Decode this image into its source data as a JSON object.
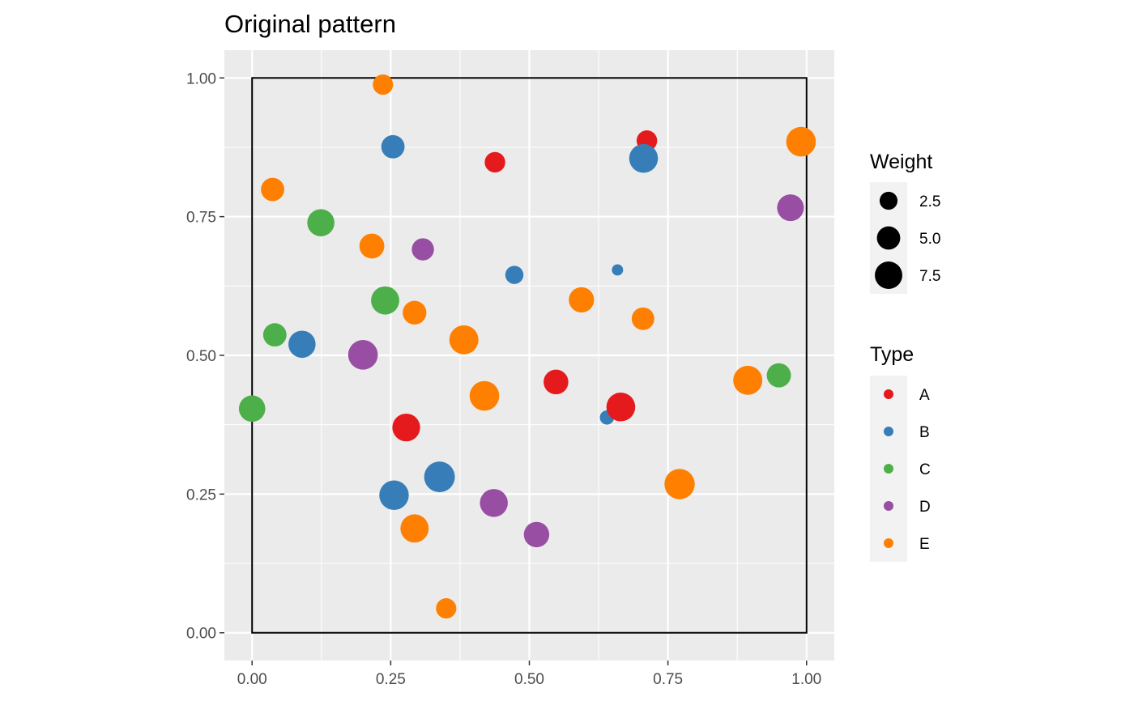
{
  "chart_data": {
    "type": "scatter",
    "title": "Original pattern",
    "xlabel": "",
    "ylabel": "",
    "xlim": [
      -0.05,
      1.05
    ],
    "ylim": [
      -0.05,
      1.05
    ],
    "x_ticks": [
      "0.00",
      "0.25",
      "0.50",
      "0.75",
      "1.00"
    ],
    "y_ticks": [
      "0.00",
      "0.25",
      "0.50",
      "0.75",
      "1.00"
    ],
    "x_tick_values": [
      0,
      0.25,
      0.5,
      0.75,
      1
    ],
    "y_tick_values": [
      0,
      0.25,
      0.5,
      0.75,
      1
    ],
    "grid": true,
    "window": {
      "xmin": 0,
      "xmax": 1,
      "ymin": 0,
      "ymax": 1
    },
    "legend_position": "right",
    "size_legend": {
      "title": "Weight",
      "entries": [
        {
          "label": "2.5",
          "value": 2.5
        },
        {
          "label": "5.0",
          "value": 5.0
        },
        {
          "label": "7.5",
          "value": 7.5
        }
      ]
    },
    "color_legend": {
      "title": "Type",
      "entries": [
        {
          "label": "A",
          "color": "#E41A1C"
        },
        {
          "label": "B",
          "color": "#377EB8"
        },
        {
          "label": "C",
          "color": "#4DAF4A"
        },
        {
          "label": "D",
          "color": "#984EA3"
        },
        {
          "label": "E",
          "color": "#FF7F00"
        }
      ]
    },
    "points": [
      {
        "x": 0.236,
        "y": 0.988,
        "type": "E",
        "weight": 3.5
      },
      {
        "x": 0.254,
        "y": 0.876,
        "type": "B",
        "weight": 5.0
      },
      {
        "x": 0.438,
        "y": 0.848,
        "type": "A",
        "weight": 3.6
      },
      {
        "x": 0.712,
        "y": 0.887,
        "type": "A",
        "weight": 3.6
      },
      {
        "x": 0.706,
        "y": 0.855,
        "type": "B",
        "weight": 8.4
      },
      {
        "x": 0.99,
        "y": 0.885,
        "type": "E",
        "weight": 9.0
      },
      {
        "x": 0.037,
        "y": 0.799,
        "type": "E",
        "weight": 5.0
      },
      {
        "x": 0.124,
        "y": 0.739,
        "type": "C",
        "weight": 7.3
      },
      {
        "x": 0.216,
        "y": 0.697,
        "type": "E",
        "weight": 5.9
      },
      {
        "x": 0.308,
        "y": 0.691,
        "type": "D",
        "weight": 4.4
      },
      {
        "x": 0.971,
        "y": 0.766,
        "type": "D",
        "weight": 7.0
      },
      {
        "x": 0.473,
        "y": 0.645,
        "type": "B",
        "weight": 2.6
      },
      {
        "x": 0.659,
        "y": 0.654,
        "type": "B",
        "weight": 0.6
      },
      {
        "x": 0.24,
        "y": 0.599,
        "type": "C",
        "weight": 8.0
      },
      {
        "x": 0.293,
        "y": 0.577,
        "type": "E",
        "weight": 5.2
      },
      {
        "x": 0.594,
        "y": 0.6,
        "type": "E",
        "weight": 6.1
      },
      {
        "x": 0.705,
        "y": 0.566,
        "type": "E",
        "weight": 4.6
      },
      {
        "x": 0.041,
        "y": 0.537,
        "type": "C",
        "weight": 5.0
      },
      {
        "x": 0.09,
        "y": 0.52,
        "type": "B",
        "weight": 7.3
      },
      {
        "x": 0.2,
        "y": 0.501,
        "type": "D",
        "weight": 9.0
      },
      {
        "x": 0.382,
        "y": 0.528,
        "type": "E",
        "weight": 8.6
      },
      {
        "x": 0.548,
        "y": 0.452,
        "type": "A",
        "weight": 5.8
      },
      {
        "x": 0.419,
        "y": 0.427,
        "type": "E",
        "weight": 9.0
      },
      {
        "x": 0.894,
        "y": 0.455,
        "type": "E",
        "weight": 8.6
      },
      {
        "x": 0.95,
        "y": 0.464,
        "type": "C",
        "weight": 5.5
      },
      {
        "x": 0.0,
        "y": 0.404,
        "type": "C",
        "weight": 6.8
      },
      {
        "x": 0.278,
        "y": 0.37,
        "type": "A",
        "weight": 7.7
      },
      {
        "x": 0.64,
        "y": 0.388,
        "type": "B",
        "weight": 1.3
      },
      {
        "x": 0.665,
        "y": 0.407,
        "type": "A",
        "weight": 8.4
      },
      {
        "x": 0.338,
        "y": 0.281,
        "type": "B",
        "weight": 9.8
      },
      {
        "x": 0.256,
        "y": 0.248,
        "type": "B",
        "weight": 8.9
      },
      {
        "x": 0.436,
        "y": 0.234,
        "type": "D",
        "weight": 7.8
      },
      {
        "x": 0.771,
        "y": 0.268,
        "type": "E",
        "weight": 9.5
      },
      {
        "x": 0.293,
        "y": 0.188,
        "type": "E",
        "weight": 8.0
      },
      {
        "x": 0.513,
        "y": 0.177,
        "type": "D",
        "weight": 6.2
      },
      {
        "x": 0.35,
        "y": 0.044,
        "type": "E",
        "weight": 3.5
      }
    ]
  }
}
